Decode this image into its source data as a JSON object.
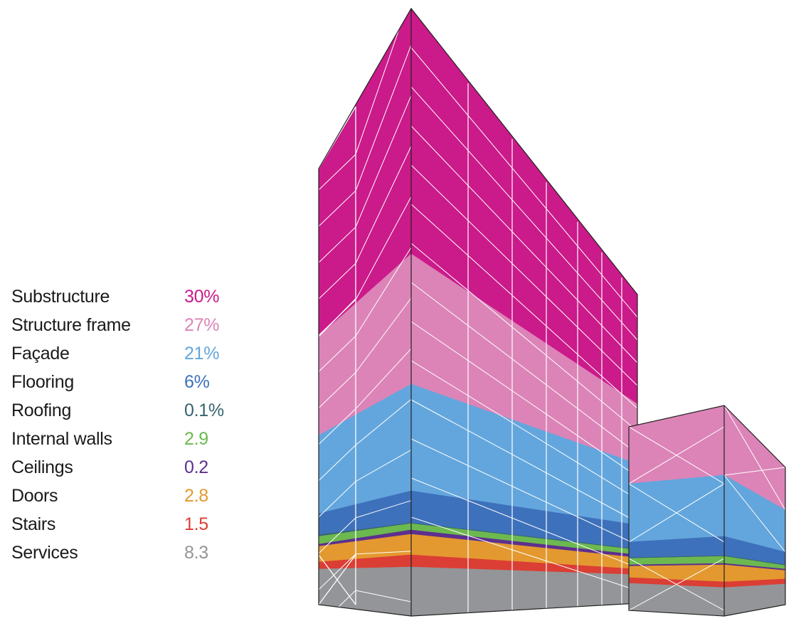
{
  "legend": {
    "items": [
      {
        "label": "Substructure",
        "value": "30%",
        "color": "#cb1a8a"
      },
      {
        "label": "Structure frame",
        "value": "27%",
        "color": "#dc84b7"
      },
      {
        "label": "Façade",
        "value": "21%",
        "color": "#63a6dd"
      },
      {
        "label": "Flooring",
        "value": "6%",
        "color": "#3e71bb"
      },
      {
        "label": "Roofing",
        "value": "0.1%",
        "color": "#37636d"
      },
      {
        "label": "Internal walls",
        "value": "2.9",
        "color": "#6cb94f"
      },
      {
        "label": "Ceilings",
        "value": "0.2",
        "color": "#5d2f8f"
      },
      {
        "label": "Doors",
        "value": "2.8",
        "color": "#e3992f"
      },
      {
        "label": "Stairs",
        "value": "1.5",
        "color": "#db3e34"
      },
      {
        "label": "Services",
        "value": "8.3",
        "color": "#939598"
      }
    ]
  }
}
